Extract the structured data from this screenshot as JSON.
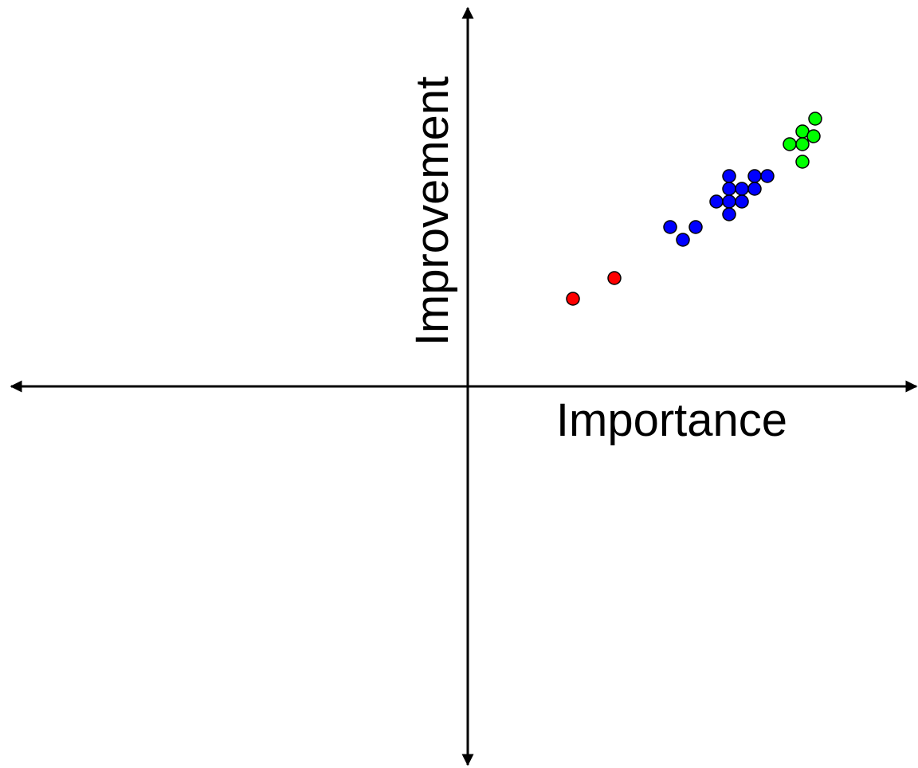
{
  "chart_data": {
    "type": "scatter",
    "x_label": "Importance",
    "y_label": "Improvement",
    "xlim": [
      -5.75,
      5.65
    ],
    "ylim": [
      -4.77,
      4.77
    ],
    "series": [
      {
        "color": "#ff0000",
        "x": [
          1.32,
          1.84
        ],
        "values": [
          1.1,
          1.36
        ]
      },
      {
        "color": "#0000ff",
        "x": [
          2.54,
          2.7,
          2.86,
          3.12,
          3.28,
          3.28,
          3.28,
          3.28,
          3.44,
          3.44,
          3.6,
          3.6,
          3.76
        ],
        "values": [
          2.0,
          1.84,
          2.0,
          2.32,
          2.64,
          2.48,
          2.32,
          2.16,
          2.48,
          2.32,
          2.64,
          2.48,
          2.64
        ]
      },
      {
        "color": "#00ff00",
        "x": [
          4.04,
          4.2,
          4.2,
          4.2,
          4.34,
          4.36
        ],
        "values": [
          3.04,
          3.2,
          3.04,
          2.82,
          3.14,
          3.36
        ]
      }
    ]
  }
}
